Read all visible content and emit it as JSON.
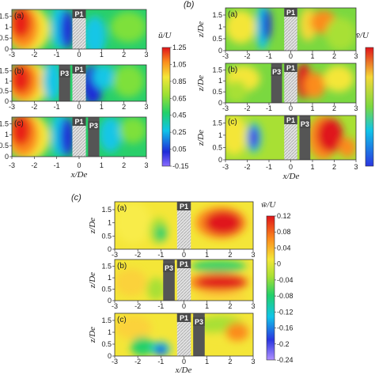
{
  "chart_data": [
    {
      "type": "heatmap",
      "group_label": "",
      "colorbar_label": "ū/U",
      "colorbar_ticks": [
        "1.25",
        "1.05",
        "0.85",
        "0.65",
        "0.45",
        "0.25",
        "0.05",
        "-0.15"
      ],
      "clim": [
        -0.15,
        1.25
      ],
      "xlabel": "x/De",
      "ylabel": "",
      "xlim": [
        -3,
        3
      ],
      "ylim": [
        0,
        1.8
      ],
      "x_ticks": [
        "-3",
        "-2",
        "-1",
        "0",
        "1",
        "2",
        "3"
      ],
      "y_ticks": [
        "0",
        "0.5",
        "1",
        "1.5"
      ],
      "panels": [
        {
          "label": "(a)",
          "blocks": [
            {
              "name": "P1",
              "x0": -0.3,
              "x1": 0.3,
              "hatched": true
            }
          ],
          "field": "u_a"
        },
        {
          "label": "(b)",
          "blocks": [
            {
              "name": "P3",
              "x0": -0.9,
              "x1": -0.4,
              "hatched": false
            },
            {
              "name": "P1",
              "x0": -0.3,
              "x1": 0.3,
              "hatched": true
            }
          ],
          "field": "u_b"
        },
        {
          "label": "(c)",
          "blocks": [
            {
              "name": "P1",
              "x0": -0.3,
              "x1": 0.3,
              "hatched": true
            },
            {
              "name": "P3",
              "x0": 0.4,
              "x1": 0.9,
              "hatched": false
            }
          ],
          "field": "u_c"
        }
      ]
    },
    {
      "type": "heatmap",
      "group_label": "(b)",
      "colorbar_label": "v̄/U",
      "colorbar_ticks": [],
      "clim": [
        -0.2,
        0.2
      ],
      "xlabel": "x/De",
      "ylabel": "z/De",
      "xlim": [
        -3,
        3
      ],
      "ylim": [
        0,
        1.8
      ],
      "x_ticks": [
        "-3",
        "-2",
        "-1",
        "0",
        "1",
        "2",
        "3"
      ],
      "y_ticks": [
        "0",
        "0.5",
        "1",
        "1.5"
      ],
      "panels": [
        {
          "label": "(a)",
          "blocks": [
            {
              "name": "P1",
              "x0": -0.3,
              "x1": 0.3,
              "hatched": true
            }
          ],
          "field": "v_a"
        },
        {
          "label": "(b)",
          "blocks": [
            {
              "name": "P3",
              "x0": -0.9,
              "x1": -0.4,
              "hatched": false
            },
            {
              "name": "P1",
              "x0": -0.3,
              "x1": 0.3,
              "hatched": true
            }
          ],
          "field": "v_b"
        },
        {
          "label": "(c)",
          "blocks": [
            {
              "name": "P1",
              "x0": -0.3,
              "x1": 0.3,
              "hatched": true
            },
            {
              "name": "P3",
              "x0": 0.4,
              "x1": 0.9,
              "hatched": false
            }
          ],
          "field": "v_c"
        }
      ]
    },
    {
      "type": "heatmap",
      "group_label": "(c)",
      "colorbar_label": "w̄/U",
      "colorbar_ticks": [
        "0.12",
        "0.08",
        "0.04",
        "0",
        "-0.04",
        "-0.08",
        "-0.12",
        "-0.16",
        "-0.2",
        "-0.24"
      ],
      "clim": [
        -0.24,
        0.12
      ],
      "xlabel": "x/De",
      "ylabel": "z/De",
      "xlim": [
        -3,
        3
      ],
      "ylim": [
        0,
        1.8
      ],
      "x_ticks": [
        "-3",
        "-2",
        "-1",
        "0",
        "1",
        "2",
        "3"
      ],
      "y_ticks": [
        "0",
        "0.5",
        "1",
        "1.5"
      ],
      "panels": [
        {
          "label": "(a)",
          "blocks": [
            {
              "name": "P1",
              "x0": -0.3,
              "x1": 0.3,
              "hatched": true
            }
          ],
          "field": "w_a"
        },
        {
          "label": "(b)",
          "blocks": [
            {
              "name": "P3",
              "x0": -0.9,
              "x1": -0.4,
              "hatched": false
            },
            {
              "name": "P1",
              "x0": -0.3,
              "x1": 0.3,
              "hatched": true
            }
          ],
          "field": "w_b"
        },
        {
          "label": "(c)",
          "blocks": [
            {
              "name": "P1",
              "x0": -0.3,
              "x1": 0.3,
              "hatched": true
            },
            {
              "name": "P3",
              "x0": 0.4,
              "x1": 0.9,
              "hatched": false
            }
          ],
          "field": "w_c"
        }
      ]
    }
  ]
}
